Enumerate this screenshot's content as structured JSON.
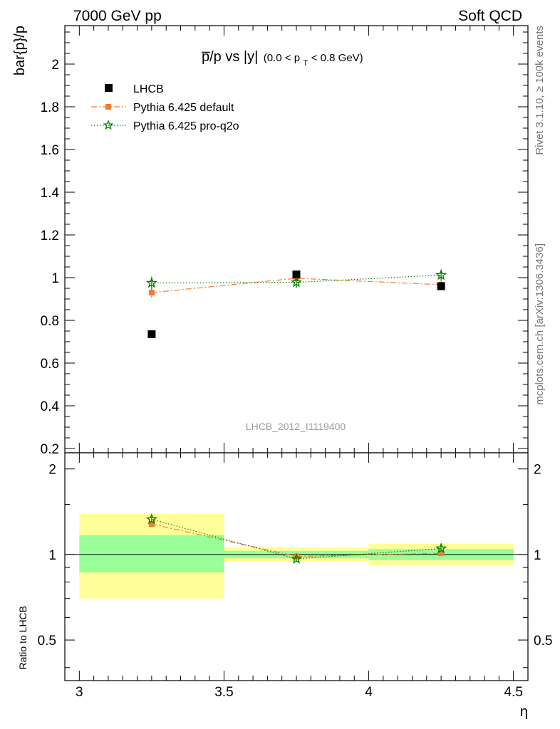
{
  "header": {
    "left": "7000 GeV pp",
    "right": "Soft QCD"
  },
  "side": {
    "rivet": "Rivet 3.1.10, ≥ 100k events",
    "mcplots": "mcplots.cern.ch [arXiv:1306.3436]"
  },
  "chart_data": {
    "type": "scatter",
    "title_main": "p̅/p vs |y|",
    "title_sub_prefix": "(0.0 < p",
    "title_sub_index": "T",
    "title_sub_suffix": " < 0.8 GeV)",
    "ylabel": "bar{p}/p",
    "xlabel": "η",
    "watermark": "LHCB_2012_I1119400",
    "xlim": [
      2.95,
      4.55
    ],
    "ylim": [
      0.18,
      2.18
    ],
    "x_ticks": [
      3,
      3.5,
      4,
      4.5
    ],
    "x_tick_labels": [
      "3",
      "3.5",
      "4",
      "4.5"
    ],
    "y_ticks": [
      0.2,
      0.4,
      0.6,
      0.8,
      1,
      1.2,
      1.4,
      1.6,
      1.8,
      2
    ],
    "y_tick_labels": [
      "0.2",
      "0.4",
      "0.6",
      "0.8",
      "1",
      "1.2",
      "1.4",
      "1.6",
      "1.8",
      "2"
    ],
    "series": [
      {
        "name": "LHCB",
        "color": "#000000",
        "marker": "square",
        "x": [
          3.25,
          3.75,
          4.25
        ],
        "y": [
          0.735,
          1.015,
          0.96
        ],
        "yerr": [
          0.006,
          0.01,
          0.01
        ]
      },
      {
        "name": "Pythia 6.425 default",
        "color": "#f47c30",
        "marker": "square",
        "line": "dashdot",
        "x": [
          3.25,
          3.75,
          4.25
        ],
        "y": [
          0.93,
          0.997,
          0.967
        ],
        "yerr": [
          0.025,
          0.02,
          0.02
        ]
      },
      {
        "name": "Pythia 6.425 pro-q2o",
        "color": "#008000",
        "marker": "star",
        "line": "dotted",
        "x": [
          3.25,
          3.75,
          4.25
        ],
        "y": [
          0.975,
          0.978,
          1.012
        ],
        "yerr": [
          0.03,
          0.025,
          0.025
        ]
      }
    ],
    "ratio": {
      "ylabel": "Ratio to LHCB",
      "ylim": [
        0.36,
        2.28
      ],
      "log": true,
      "y_ticks": [
        0.5,
        1,
        2
      ],
      "y_tick_labels": [
        "0.5",
        "1",
        "2"
      ],
      "bands": [
        {
          "x0": 3.0,
          "x1": 3.5,
          "inner": [
            0.865,
            1.17
          ],
          "outer": [
            0.7,
            1.39
          ]
        },
        {
          "x0": 3.5,
          "x1": 4.0,
          "inner": [
            0.97,
            1.03
          ],
          "outer": [
            0.945,
            1.06
          ]
        },
        {
          "x0": 4.0,
          "x1": 4.5,
          "inner": [
            0.955,
            1.045
          ],
          "outer": [
            0.915,
            1.09
          ]
        }
      ],
      "inner_color": "#99ff99",
      "outer_color": "#ffff99",
      "series": [
        {
          "name": "Pythia 6.425 default",
          "color": "#f47c30",
          "marker": "square",
          "line": "dashdot",
          "x": [
            3.25,
            3.75,
            4.25
          ],
          "y": [
            1.28,
            0.985,
            1.01
          ],
          "yerr": [
            0.03,
            0.02,
            0.02
          ]
        },
        {
          "name": "Pythia 6.425 pro-q2o",
          "color": "#008000",
          "marker": "star",
          "line": "dotted",
          "x": [
            3.25,
            3.75,
            4.25
          ],
          "y": [
            1.33,
            0.965,
            1.05
          ],
          "yerr": [
            0.03,
            0.02,
            0.02
          ]
        }
      ]
    }
  }
}
